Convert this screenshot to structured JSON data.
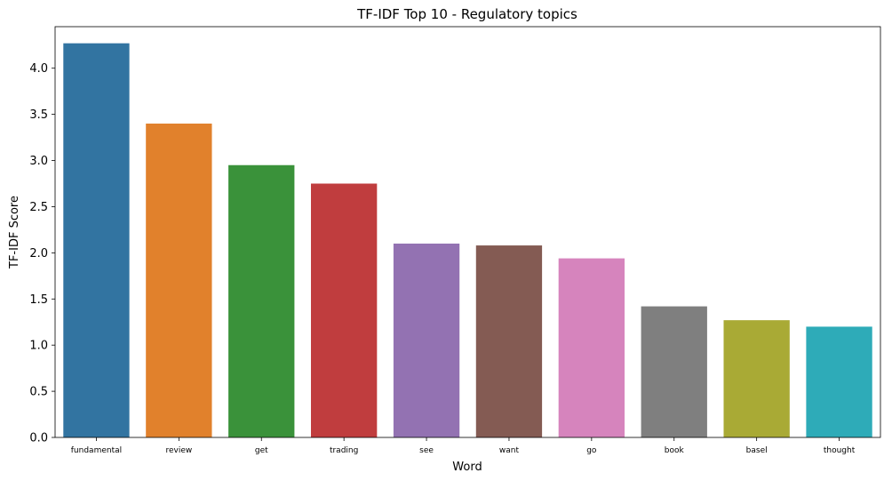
{
  "chart_data": {
    "type": "bar",
    "title": "TF-IDF Top 10 - Regulatory topics",
    "xlabel": "Word",
    "ylabel": "TF-IDF Score",
    "categories": [
      "fundamental",
      "review",
      "get",
      "trading",
      "see",
      "want",
      "go",
      "book",
      "basel",
      "thought"
    ],
    "values": [
      4.27,
      3.4,
      2.95,
      2.75,
      2.1,
      2.08,
      1.94,
      1.42,
      1.27,
      1.2
    ],
    "colors": [
      "#3274a1",
      "#e1812c",
      "#3a923a",
      "#c03d3e",
      "#9372b2",
      "#845b53",
      "#d684bd",
      "#7f7f7f",
      "#a9aa35",
      "#2eabb8"
    ],
    "ylim": [
      0,
      4.45
    ],
    "yticks": [
      "0.0",
      "0.5",
      "1.0",
      "1.5",
      "2.0",
      "2.5",
      "3.0",
      "3.5",
      "4.0"
    ],
    "grid": false,
    "legend": "none"
  }
}
